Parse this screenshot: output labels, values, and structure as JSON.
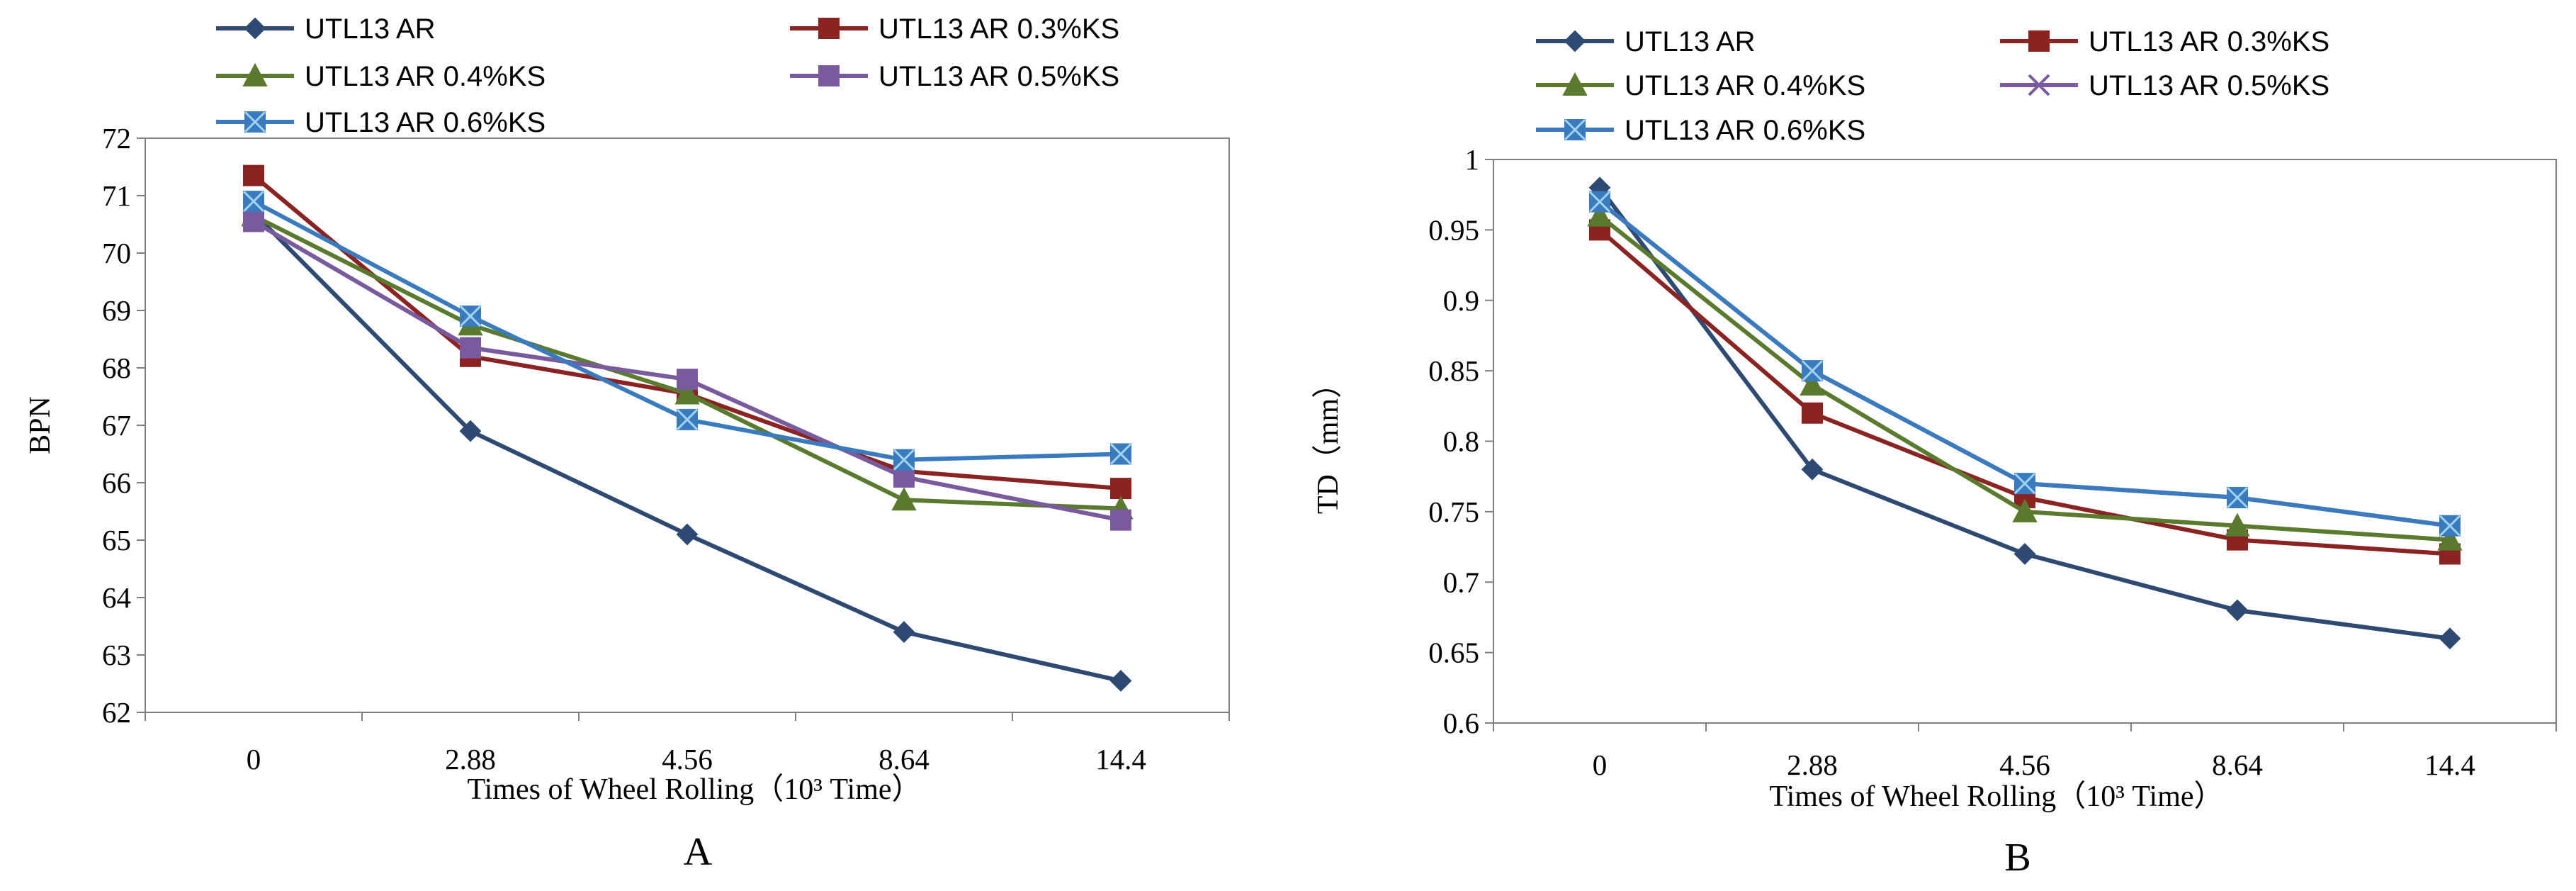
{
  "chart_data": [
    {
      "type": "line",
      "panel_label": "A",
      "ylabel": "BPN",
      "xlabel": "Times of Wheel Rolling（10³ Time）",
      "categories": [
        "0",
        "2.88",
        "4.56",
        "8.64",
        "14.4"
      ],
      "ylim": [
        62,
        72
      ],
      "yticks": [
        "62",
        "63",
        "64",
        "65",
        "66",
        "67",
        "68",
        "69",
        "70",
        "71",
        "72"
      ],
      "grid": false,
      "legend_position": "top",
      "series": [
        {
          "name": "UTL13 AR",
          "values": [
            70.7,
            66.9,
            65.1,
            63.4,
            62.55
          ],
          "color": "#2e4a73",
          "marker": "diamond"
        },
        {
          "name": "UTL13 AR 0.3%KS",
          "values": [
            71.35,
            68.2,
            67.55,
            66.2,
            65.9
          ],
          "color": "#8b2323",
          "marker": "square"
        },
        {
          "name": "UTL13 AR 0.4%KS",
          "values": [
            70.65,
            68.75,
            67.55,
            65.7,
            65.55
          ],
          "color": "#5a7a2e",
          "marker": "triangle"
        },
        {
          "name": "UTL13 AR 0.5%KS",
          "values": [
            70.55,
            68.35,
            67.8,
            66.1,
            65.35
          ],
          "color": "#7a5a9e",
          "marker": "square"
        },
        {
          "name": "UTL13 AR 0.6%KS",
          "values": [
            70.9,
            68.9,
            67.1,
            66.4,
            66.5
          ],
          "color": "#3a7bbf",
          "marker": "square-x"
        }
      ]
    },
    {
      "type": "line",
      "panel_label": "B",
      "ylabel": "TD（mm）",
      "xlabel": "Times of Wheel Rolling（10³ Time）",
      "categories": [
        "0",
        "2.88",
        "4.56",
        "8.64",
        "14.4"
      ],
      "ylim": [
        0.6,
        1.0
      ],
      "yticks": [
        "0.6",
        "0.65",
        "0.7",
        "0.75",
        "0.8",
        "0.85",
        "0.9",
        "0.95",
        "1"
      ],
      "grid": false,
      "legend_position": "top",
      "series": [
        {
          "name": "UTL13 AR",
          "values": [
            0.98,
            0.78,
            0.72,
            0.68,
            0.66
          ],
          "color": "#2e4a73",
          "marker": "diamond"
        },
        {
          "name": "UTL13 AR 0.3%KS",
          "values": [
            0.95,
            0.82,
            0.76,
            0.73,
            0.72
          ],
          "color": "#8b2323",
          "marker": "square"
        },
        {
          "name": "UTL13 AR 0.4%KS",
          "values": [
            0.96,
            0.84,
            0.75,
            0.74,
            0.73
          ],
          "color": "#5a7a2e",
          "marker": "triangle"
        },
        {
          "name": "UTL13 AR 0.5%KS",
          "values": [
            0.97,
            0.85,
            0.77,
            0.76,
            0.74
          ],
          "color": "#7a5a9e",
          "marker": "x"
        },
        {
          "name": "UTL13 AR 0.6%KS",
          "values": [
            0.97,
            0.85,
            0.77,
            0.76,
            0.74
          ],
          "color": "#3a7bbf",
          "marker": "square-x"
        }
      ]
    }
  ]
}
